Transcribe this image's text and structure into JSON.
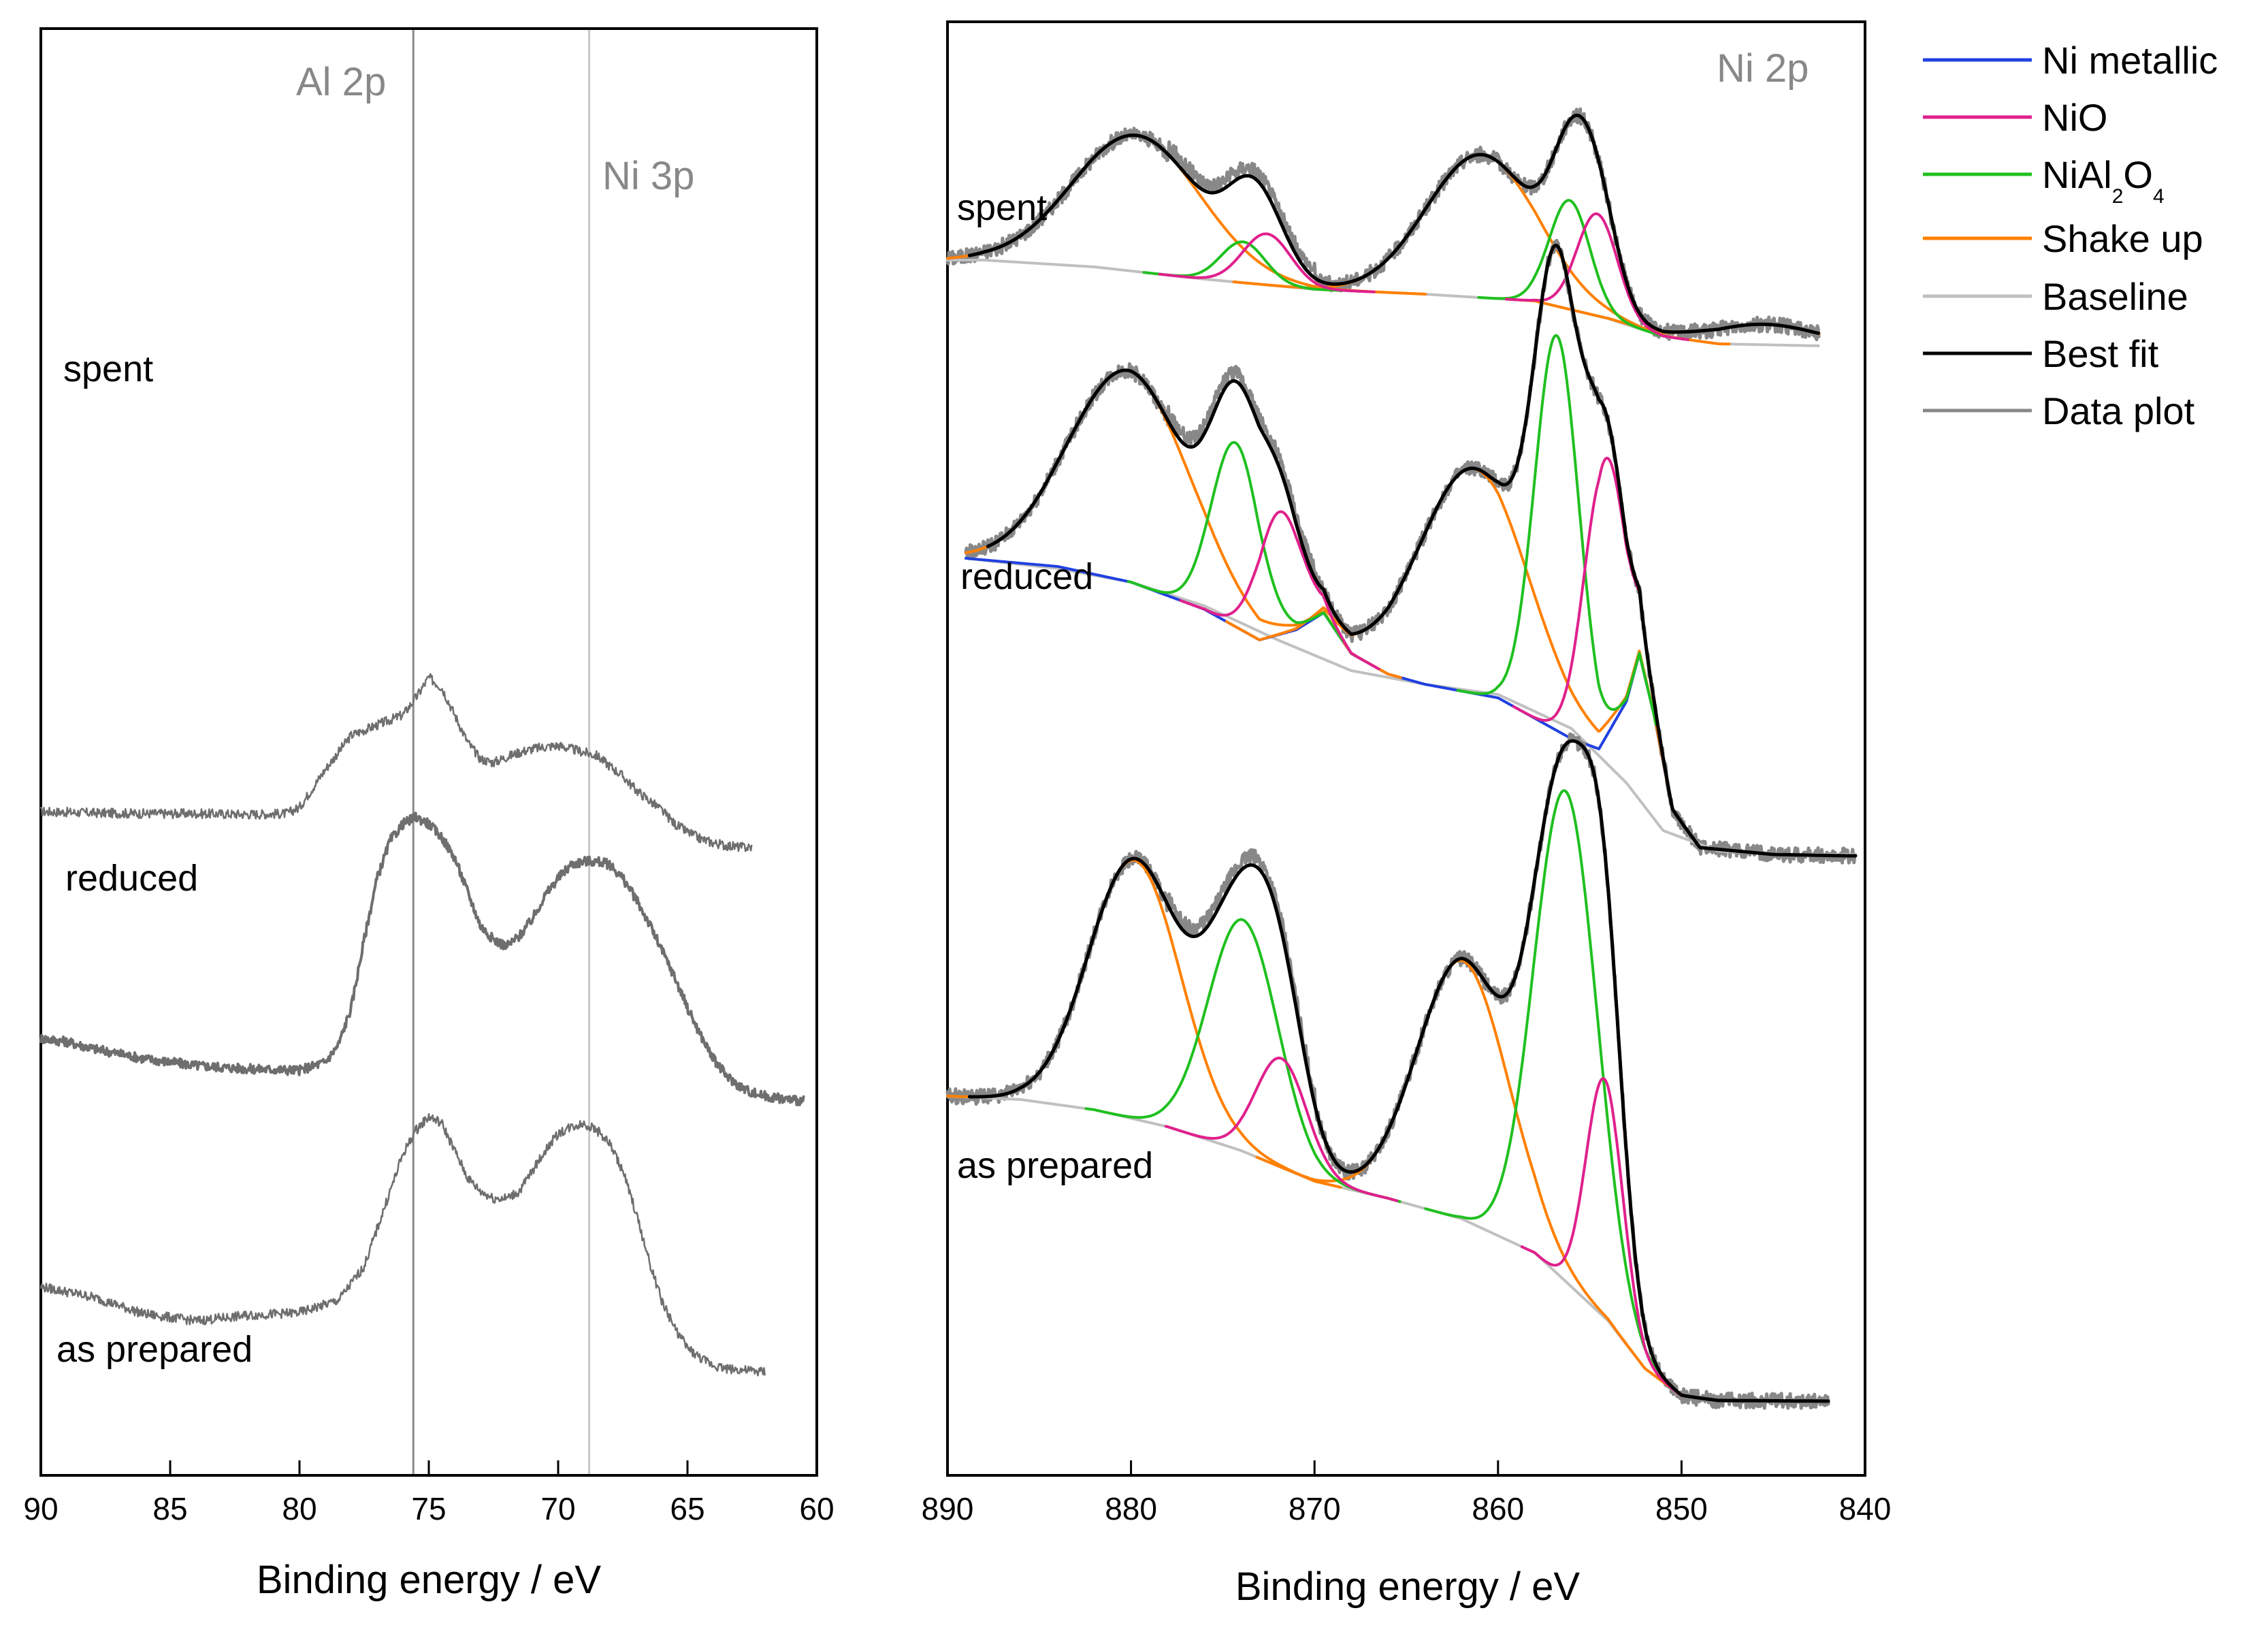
{
  "chart_data": [
    {
      "type": "line",
      "panel": "left",
      "title": "",
      "xlabel": "Binding energy / eV",
      "ylabel": "",
      "xlim": [
        90,
        60
      ],
      "x_reversed": true,
      "xticks": [
        90,
        85,
        80,
        75,
        70,
        65,
        60
      ],
      "tick_labels": [
        "90",
        "85",
        "80",
        "75",
        "70",
        "65",
        "60"
      ],
      "annotations": [
        {
          "text": "Al 2p",
          "x": 77.5
        },
        {
          "text": "Ni 3p",
          "x": 66.8
        }
      ],
      "reference_lines": [
        {
          "x": 75.6,
          "label": "Al 2p",
          "color": "#8a8a8a"
        },
        {
          "x": 68.8,
          "label": "Ni 3p",
          "color": "#c8c8c8"
        }
      ],
      "series": [
        {
          "name": "spent",
          "label": "spent",
          "color": "#6e6e6e",
          "offset": 800,
          "x": [
            90,
            88,
            86,
            84,
            82,
            80.5,
            80,
            79,
            78,
            77,
            76,
            75.5,
            75,
            74.5,
            74,
            73.5,
            73,
            72.5,
            72,
            71.5,
            71,
            70.5,
            70,
            69.5,
            69,
            68.5,
            68,
            67.5,
            67,
            66.5,
            66,
            65.5,
            65,
            64.5,
            64,
            63.5,
            63,
            62.5
          ],
          "values": [
            58,
            56,
            55,
            55,
            54,
            55,
            64,
            120,
            170,
            185,
            200,
            225,
            255,
            240,
            200,
            160,
            135,
            130,
            138,
            145,
            150,
            153,
            155,
            150,
            145,
            140,
            125,
            110,
            90,
            75,
            60,
            40,
            28,
            18,
            12,
            8,
            6,
            5
          ]
        },
        {
          "name": "reduced",
          "label": "reduced",
          "color": "#6e6e6e",
          "offset": 400,
          "x": [
            90,
            89,
            88,
            86,
            84,
            82,
            80,
            79,
            78.5,
            78,
            77.5,
            77,
            76.5,
            76,
            75.5,
            75,
            74.5,
            74,
            73.5,
            73,
            72.5,
            72,
            71.5,
            71,
            70.5,
            70,
            69.5,
            69,
            68.5,
            68,
            67.5,
            67,
            66.5,
            66,
            65.5,
            65,
            64.5,
            64,
            63.5,
            63,
            62.5,
            62,
            61.5,
            61,
            60.5
          ],
          "values": [
            125,
            120,
            110,
            95,
            85,
            80,
            78,
            90,
            115,
            170,
            270,
            360,
            415,
            440,
            450,
            440,
            420,
            390,
            340,
            290,
            270,
            260,
            275,
            300,
            335,
            360,
            380,
            385,
            385,
            380,
            360,
            330,
            295,
            255,
            215,
            170,
            130,
            95,
            70,
            55,
            45,
            40,
            37,
            35,
            33
          ]
        },
        {
          "name": "as prepared",
          "label": "as prepared",
          "color": "#6e6e6e",
          "offset": 0,
          "x": [
            90,
            88,
            86,
            84,
            82,
            80,
            78.5,
            77.5,
            76.5,
            76,
            75.5,
            75,
            74.5,
            74,
            73.5,
            73,
            72.5,
            72,
            71.5,
            71,
            70.5,
            70,
            69.5,
            69,
            68.5,
            68,
            67.5,
            67,
            66.5,
            66,
            65.5,
            65,
            64.5,
            64,
            63.5,
            63,
            62.5,
            62
          ],
          "values": [
            160,
            145,
            120,
            110,
            118,
            122,
            140,
            190,
            300,
            355,
            390,
            410,
            400,
            360,
            320,
            300,
            290,
            290,
            300,
            330,
            360,
            385,
            395,
            400,
            390,
            370,
            330,
            270,
            200,
            140,
            100,
            70,
            55,
            45,
            40,
            38,
            36,
            35
          ]
        }
      ]
    },
    {
      "type": "line",
      "panel": "right",
      "title": "",
      "xlabel": "Binding energy / eV",
      "ylabel": "",
      "xlim": [
        890,
        840
      ],
      "x_reversed": true,
      "xticks": [
        890,
        880,
        870,
        860,
        850,
        840
      ],
      "tick_labels": [
        "890",
        "880",
        "870",
        "860",
        "850",
        "840"
      ],
      "annotations": [
        {
          "text": "Ni 2p",
          "x": 847.5
        }
      ],
      "legend": {
        "location": "outside-top-right",
        "entries": [
          {
            "label": "Ni metallic",
            "color": "#2040e0"
          },
          {
            "label": "NiO",
            "color": "#e0208c"
          },
          {
            "label": "NiAl",
            "sub1": "2",
            "mid": "O",
            "sub2": "4",
            "color": "#20c020"
          },
          {
            "label": "Shake up",
            "color": "#ff8000"
          },
          {
            "label": "Baseline",
            "color": "#c0c0c0"
          },
          {
            "label": "Best fit",
            "color": "#000000"
          },
          {
            "label": "Data plot",
            "color": "#888888"
          }
        ]
      },
      "sample_labels": [
        "spent",
        "reduced",
        "as prepared"
      ],
      "components": {
        "spent": {
          "offset": 1550,
          "x_range": [
            890,
            842.5
          ],
          "baseline": {
            "xs": [
              888,
              882,
              876,
              870,
              864,
              858,
              854,
              851,
              848,
              842.5
            ],
            "ys": [
              128,
              118,
              100,
              85,
              78,
              68,
              42,
              16,
              5,
              2
            ]
          },
          "shake_up": [
            [
              879.7,
              200,
              3.5
            ],
            [
              860.9,
              210,
              3.0
            ],
            [
              845.5,
              30,
              3.0
            ]
          ],
          "nio": [
            [
              872.6,
              75,
              1.3
            ],
            [
              854.6,
              150,
              1.1
            ]
          ],
          "nial2o4": [
            [
              873.9,
              60,
              1.2
            ],
            [
              856.1,
              160,
              1.1
            ]
          ],
          "ni_metallic": []
        },
        "reduced": {
          "offset": 800,
          "x_range": [
            889,
            840.5
          ],
          "baseline": {
            "xs": [
              889,
              884,
              880,
              876,
              872,
              868,
              864,
              860,
              856,
              853,
              851,
              848,
              844
            ],
            "ys": [
              440,
              425,
              405,
              370,
              320,
              275,
              255,
              240,
              190,
              110,
              40,
              10,
              5
            ]
          },
          "shake_up": [
            [
              880.1,
              310,
              3.3
            ],
            [
              861.3,
              330,
              3.0
            ]
          ],
          "nio": [
            [
              871.9,
              180,
              1.2
            ],
            [
              854.2,
              410,
              1.1
            ]
          ],
          "nial2o4": [
            [
              874.3,
              270,
              1.3
            ],
            [
              856.8,
              580,
              1.2
            ]
          ],
          "ni_metallic": {
            "xs": [
              889,
              884,
              880,
              876,
              873,
              871,
              869.5,
              868,
              866,
              864,
              860,
              856,
              854.5,
              853,
              852.3,
              851.5,
              850.5,
              849,
              845,
              841
            ],
            "ys": [
              440,
              428,
              405,
              365,
              320,
              335,
              360,
              300,
              270,
              255,
              235,
              175,
              160,
              230,
              300,
              210,
              70,
              15,
              5,
              3
            ]
          }
        },
        "as prepared": {
          "offset": 0,
          "x_range": [
            890,
            842
          ],
          "baseline": {
            "xs": [
              890,
              886,
              882,
              878,
              874,
              870,
              866,
              862,
              858,
              854,
              852,
              850,
              848,
              842
            ],
            "ys": [
              450,
              445,
              430,
              405,
              370,
              325,
              300,
              270,
              220,
              120,
              50,
              10,
              3,
              2
            ]
          },
          "shake_up": [
            [
              879.8,
              380,
              2.5
            ],
            [
              861.9,
              380,
              2.5
            ]
          ],
          "nio": [
            [
              871.8,
              160,
              1.4
            ],
            [
              854.2,
              350,
              1.0
            ]
          ],
          "nial2o4": [
            [
              873.9,
              340,
              1.9
            ],
            [
              856.3,
              720,
              1.7
            ]
          ],
          "ni_metallic": []
        }
      }
    }
  ]
}
